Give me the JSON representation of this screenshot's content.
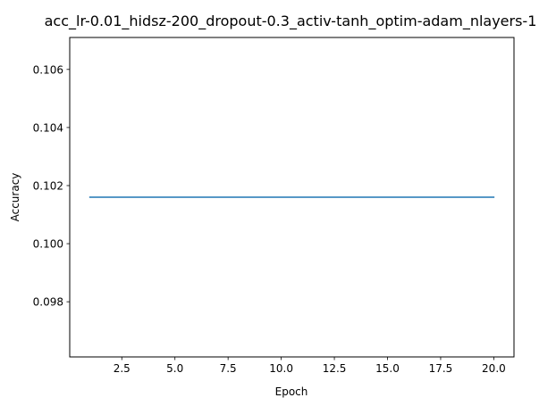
{
  "chart_data": {
    "type": "line",
    "title": "acc_lr-0.01_hidsz-200_dropout-0.3_activ-tanh_optim-adam_nlayers-1",
    "xlabel": "Epoch",
    "ylabel": "Accuracy",
    "xlim": [
      0.05,
      20.95
    ],
    "ylim": [
      0.0961,
      0.1071
    ],
    "x_ticks": [
      2.5,
      5.0,
      7.5,
      10.0,
      12.5,
      15.0,
      17.5,
      20.0
    ],
    "x_tick_labels": [
      "2.5",
      "5.0",
      "7.5",
      "10.0",
      "12.5",
      "15.0",
      "17.5",
      "20.0"
    ],
    "y_ticks": [
      0.098,
      0.1,
      0.102,
      0.104,
      0.106
    ],
    "y_tick_labels": [
      "0.098",
      "0.100",
      "0.102",
      "0.104",
      "0.106"
    ],
    "grid": false,
    "series": [
      {
        "color": "#1f77b4",
        "x": [
          1,
          2,
          3,
          4,
          5,
          6,
          7,
          8,
          9,
          10,
          11,
          12,
          13,
          14,
          15,
          16,
          17,
          18,
          19,
          20
        ],
        "y": [
          0.1016,
          0.1016,
          0.1016,
          0.1016,
          0.1016,
          0.1016,
          0.1016,
          0.1016,
          0.1016,
          0.1016,
          0.1016,
          0.1016,
          0.1016,
          0.1016,
          0.1016,
          0.1016,
          0.1016,
          0.1016,
          0.1016,
          0.1016
        ]
      }
    ]
  }
}
